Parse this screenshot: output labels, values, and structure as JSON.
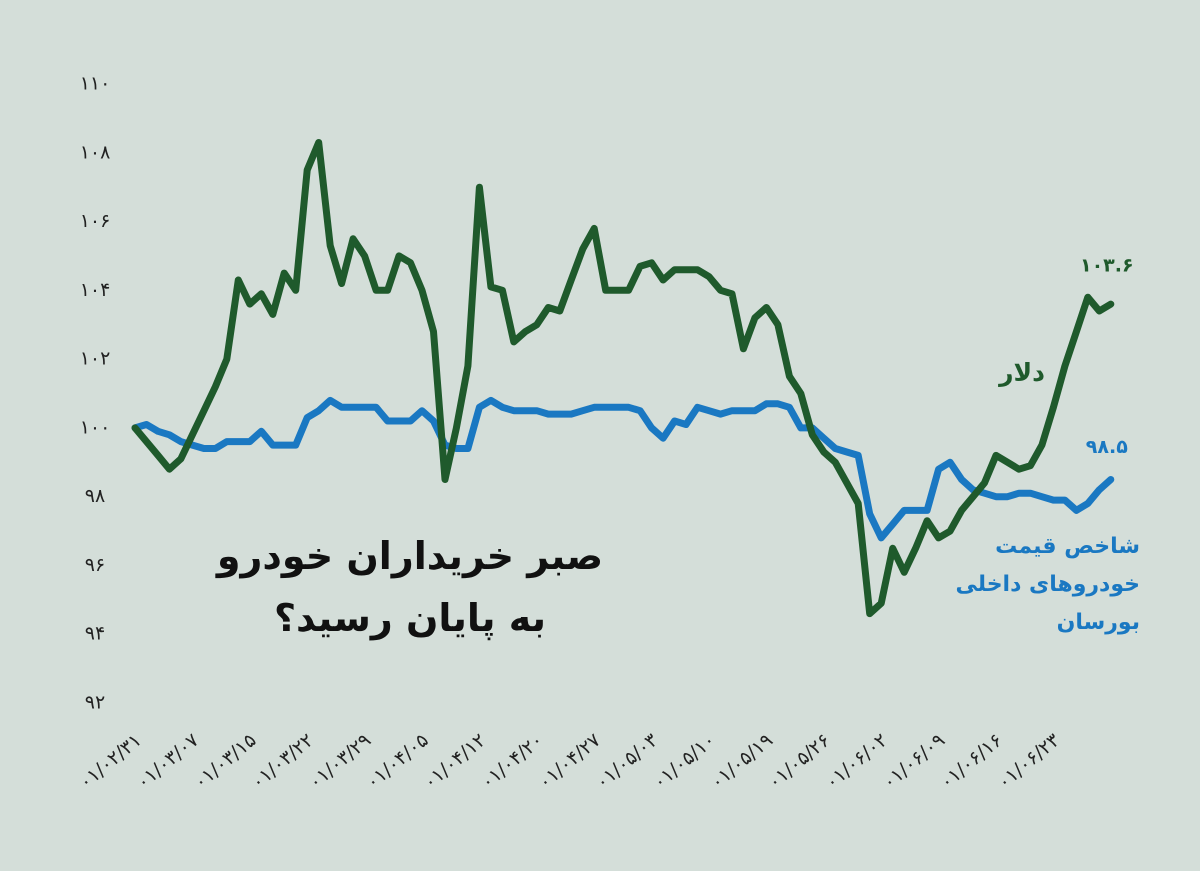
{
  "chart_data": {
    "type": "line",
    "title": "صبر خریداران خودرو به پایان رسید؟",
    "categories": [
      "۰۱/۰۲/۳۱",
      null,
      null,
      null,
      null,
      "۰۱/۰۳/۰۷",
      null,
      null,
      null,
      null,
      "۰۱/۰۳/۱۵",
      null,
      null,
      null,
      null,
      "۰۱/۰۳/۲۲",
      null,
      null,
      null,
      null,
      "۰۱/۰۳/۲۹",
      null,
      null,
      null,
      null,
      "۰۱/۰۴/۰۵",
      null,
      null,
      null,
      null,
      "۰۱/۰۴/۱۲",
      null,
      null,
      null,
      null,
      "۰۱/۰۴/۲۰",
      null,
      null,
      null,
      null,
      "۰۱/۰۴/۲۷",
      null,
      null,
      null,
      null,
      "۰۱/۰۵/۰۳",
      null,
      null,
      null,
      null,
      "۰۱/۰۵/۱۰",
      null,
      null,
      null,
      null,
      "۰۱/۰۵/۱۹",
      null,
      null,
      null,
      null,
      "۰۱/۰۵/۲۶",
      null,
      null,
      null,
      null,
      "۰۱/۰۶/۰۲",
      null,
      null,
      null,
      null,
      "۰۱/۰۶/۰۹",
      null,
      null,
      null,
      null,
      "۰۱/۰۶/۱۶",
      null,
      null,
      null,
      null,
      "۰۱/۰۶/۲۳",
      null,
      null,
      null,
      null,
      null
    ],
    "series": [
      {
        "name": "دلار",
        "color": "#1f5a2c",
        "values": [
          100,
          99.6,
          99.2,
          98.8,
          99.1,
          99.8,
          100.5,
          101.2,
          102,
          104.3,
          103.6,
          103.9,
          103.3,
          104.5,
          104,
          107.5,
          108.3,
          105.3,
          104.2,
          105.5,
          105,
          104,
          104,
          105,
          104.8,
          104,
          102.8,
          98.5,
          100,
          101.8,
          107,
          104.1,
          104,
          102.5,
          102.8,
          103,
          103.5,
          103.4,
          104.3,
          105.2,
          105.8,
          104,
          104,
          104,
          104.7,
          104.8,
          104.3,
          104.6,
          104.6,
          104.6,
          104.4,
          104,
          103.9,
          102.3,
          103.2,
          103.5,
          103,
          101.5,
          101,
          99.8,
          99.3,
          99,
          98.4,
          97.8,
          94.6,
          94.9,
          96.5,
          95.8,
          96.5,
          97.3,
          96.8,
          97,
          97.6,
          98,
          98.4,
          99.2,
          99,
          98.8,
          98.9,
          99.5,
          100.6,
          101.8,
          102.8,
          103.8,
          103.4,
          103.6
        ],
        "value_labels": [
          null,
          null,
          null,
          null,
          null,
          null,
          null,
          null,
          null,
          null,
          null,
          null,
          null,
          null,
          null,
          null,
          null,
          null,
          null,
          null,
          null,
          null,
          null,
          null,
          null,
          null,
          null,
          null,
          null,
          null,
          null,
          null,
          null,
          null,
          null,
          null,
          null,
          null,
          null,
          null,
          null,
          null,
          null,
          null,
          null,
          null,
          null,
          null,
          null,
          null,
          null,
          null,
          null,
          null,
          null,
          null,
          null,
          null,
          null,
          null,
          null,
          null,
          null,
          null,
          null,
          null,
          null,
          null,
          null,
          null,
          null,
          null,
          null,
          null,
          null,
          null,
          null,
          null,
          null,
          null,
          null,
          null,
          null,
          null,
          null,
          "۱۰۳.۶"
        ]
      },
      {
        "name": "شاخص قیمت خودروهای داخلی بورسان",
        "color": "#1a78c2",
        "values": [
          100,
          100.1,
          99.9,
          99.8,
          99.6,
          99.5,
          99.4,
          99.4,
          99.6,
          99.6,
          99.6,
          99.9,
          99.5,
          99.5,
          99.5,
          100.3,
          100.5,
          100.8,
          100.6,
          100.6,
          100.6,
          100.6,
          100.2,
          100.2,
          100.2,
          100.5,
          100.2,
          99.5,
          99.4,
          99.4,
          100.6,
          100.8,
          100.6,
          100.5,
          100.5,
          100.5,
          100.4,
          100.4,
          100.4,
          100.5,
          100.6,
          100.6,
          100.6,
          100.6,
          100.5,
          100,
          99.7,
          100.2,
          100.1,
          100.6,
          100.5,
          100.4,
          100.5,
          100.5,
          100.5,
          100.7,
          100.7,
          100.6,
          100,
          100,
          99.7,
          99.4,
          99.3,
          99.2,
          97.5,
          96.8,
          97.2,
          97.6,
          97.6,
          97.6,
          98.8,
          99,
          98.5,
          98.2,
          98.1,
          98,
          98,
          98.1,
          98.1,
          98,
          97.9,
          97.9,
          97.6,
          97.8,
          98.2,
          98.5
        ],
        "value_labels": [
          null,
          null,
          null,
          null,
          null,
          null,
          null,
          null,
          null,
          null,
          null,
          null,
          null,
          null,
          null,
          null,
          null,
          null,
          null,
          null,
          null,
          null,
          null,
          null,
          null,
          null,
          null,
          null,
          null,
          null,
          null,
          null,
          null,
          null,
          null,
          null,
          null,
          null,
          null,
          null,
          null,
          null,
          null,
          null,
          null,
          null,
          null,
          null,
          null,
          null,
          null,
          null,
          null,
          null,
          null,
          null,
          null,
          null,
          null,
          null,
          null,
          null,
          null,
          null,
          null,
          null,
          null,
          null,
          null,
          null,
          null,
          null,
          null,
          null,
          null,
          null,
          null,
          null,
          null,
          null,
          null,
          null,
          null,
          null,
          null,
          "۹۸.۵"
        ]
      }
    ],
    "ylim": [
      92,
      110
    ],
    "yticks": [
      {
        "value": 92,
        "label": "۹۲"
      },
      {
        "value": 94,
        "label": "۹۴"
      },
      {
        "value": 96,
        "label": "۹۶"
      },
      {
        "value": 98,
        "label": "۹۸"
      },
      {
        "value": 100,
        "label": "۱۰۰"
      },
      {
        "value": 102,
        "label": "۱۰۲"
      },
      {
        "value": 104,
        "label": "۱۰۴"
      },
      {
        "value": 106,
        "label": "۱۰۶"
      },
      {
        "value": 108,
        "label": "۱۰۸"
      },
      {
        "value": 110,
        "label": "۱۱۰"
      }
    ]
  }
}
